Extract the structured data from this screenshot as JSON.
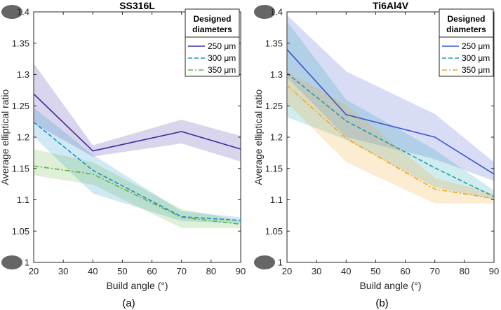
{
  "chart_data": [
    {
      "type": "line",
      "panel_caption": "(a)",
      "title": "SS316L",
      "xlabel": "Build angle (°)",
      "ylabel": "Average elliptical ratio",
      "xlim": [
        20,
        90
      ],
      "ylim": [
        1,
        1.4
      ],
      "xticks": [
        "20",
        "30",
        "40",
        "50",
        "60",
        "70",
        "80",
        "90"
      ],
      "yticks": [
        "1",
        "1.05",
        "1.1",
        "1.15",
        "1.2",
        "1.25",
        "1.3",
        "1.35",
        "1.4"
      ],
      "x": [
        20,
        40,
        70,
        90
      ],
      "legend_title": [
        "Designed",
        "diameters"
      ],
      "series": [
        {
          "name": "250 μm",
          "color": "#3f2d9f",
          "dash": "solid",
          "values": [
            1.269,
            1.178,
            1.209,
            1.181
          ],
          "band_upper": [
            1.318,
            1.187,
            1.228,
            1.202
          ],
          "band_lower": [
            1.222,
            1.169,
            1.19,
            1.161
          ]
        },
        {
          "name": "300 μm",
          "color": "#1a8fc9",
          "dash": "dashed",
          "values": [
            1.224,
            1.147,
            1.073,
            1.067
          ],
          "band_upper": [
            1.247,
            1.172,
            1.082,
            1.072
          ],
          "band_lower": [
            1.201,
            1.11,
            1.066,
            1.062
          ]
        },
        {
          "name": "350 μm",
          "color": "#5cb53a",
          "dash": "dashdot",
          "values": [
            1.154,
            1.141,
            1.072,
            1.061
          ],
          "band_upper": [
            1.181,
            1.16,
            1.085,
            1.067
          ],
          "band_lower": [
            1.139,
            1.124,
            1.055,
            1.055
          ]
        }
      ]
    },
    {
      "type": "line",
      "panel_caption": "(b)",
      "title": "Ti6Al4V",
      "xlabel": "Build angle (°)",
      "ylabel": "Average elliptical ratio",
      "xlim": [
        20,
        90
      ],
      "ylim": [
        1,
        1.4
      ],
      "xticks": [
        "20",
        "30",
        "40",
        "50",
        "60",
        "70",
        "80",
        "90"
      ],
      "yticks": [
        "1",
        "1.05",
        "1.1",
        "1.15",
        "1.2",
        "1.25",
        "1.3",
        "1.35",
        "1.4"
      ],
      "x": [
        20,
        40,
        70,
        90
      ],
      "legend_title": [
        "Designed",
        "diameters"
      ],
      "series": [
        {
          "name": "250 μm",
          "color": "#3a55cf",
          "dash": "solid",
          "values": [
            1.34,
            1.236,
            1.2,
            1.141
          ],
          "band_upper": [
            1.395,
            1.305,
            1.237,
            1.16
          ],
          "band_lower": [
            1.295,
            1.2,
            1.165,
            1.13
          ]
        },
        {
          "name": "300 μm",
          "color": "#1a9fb0",
          "dash": "dashed",
          "values": [
            1.302,
            1.226,
            1.151,
            1.105
          ],
          "band_upper": [
            1.385,
            1.26,
            1.18,
            1.115
          ],
          "band_lower": [
            1.232,
            1.196,
            1.12,
            1.1
          ]
        },
        {
          "name": "350 μm",
          "color": "#f0a620",
          "dash": "dashdot",
          "values": [
            1.283,
            1.198,
            1.117,
            1.102
          ],
          "band_upper": [
            1.305,
            1.252,
            1.135,
            1.11
          ],
          "band_lower": [
            1.255,
            1.16,
            1.094,
            1.094
          ]
        }
      ]
    }
  ]
}
